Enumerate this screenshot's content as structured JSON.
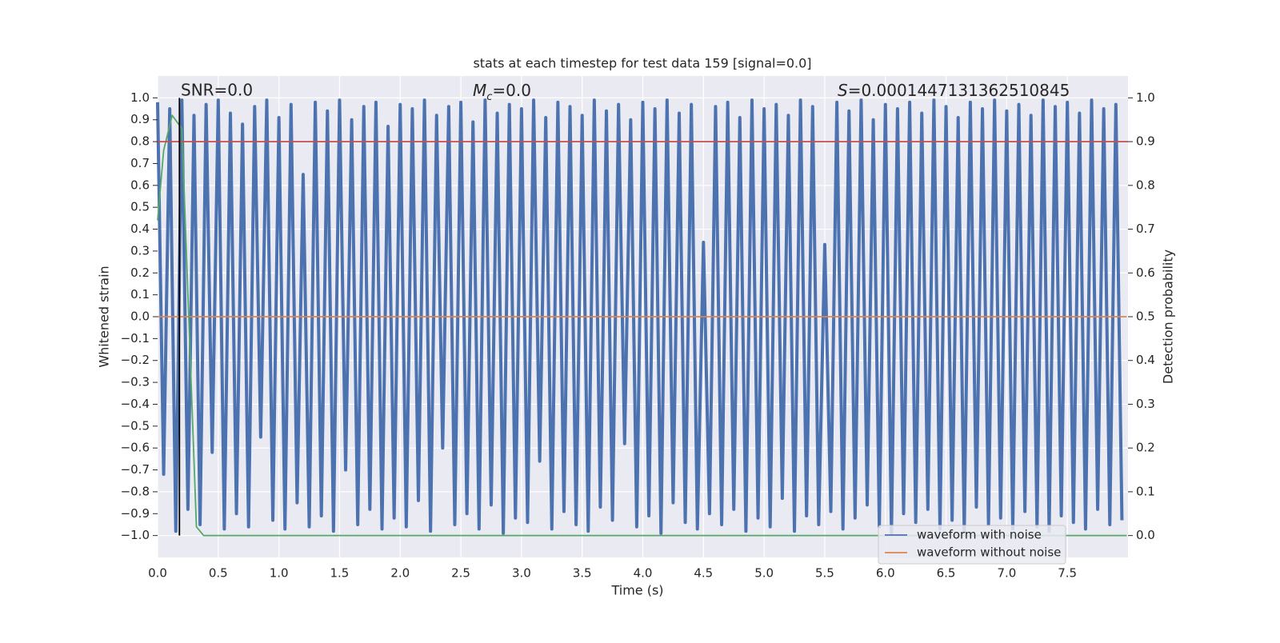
{
  "chart_data": {
    "type": "line",
    "title": "stats at each timestep for test data 159 [signal=0.0]",
    "xlabel": "Time (s)",
    "ylabel": "Whitened strain",
    "y2label": "Detection probability",
    "annotations": [
      {
        "text": "SNR=0.0",
        "x": 0.2
      },
      {
        "symbol": "M",
        "subscript": "c",
        "text": "=0.0",
        "x": 2.6
      },
      {
        "symbol": "S",
        "text": "=0.0001447131362510845",
        "x": 5.6
      }
    ],
    "xlim": [
      0,
      8
    ],
    "ylim": [
      -1.1,
      1.1
    ],
    "y2lim": [
      -0.05,
      1.05
    ],
    "xticks": [
      {
        "value": 0,
        "label": "0.0"
      },
      0.5,
      {
        "value": 1,
        "label": "1.0"
      },
      1.5,
      {
        "value": 2,
        "label": "2.0"
      },
      2.5,
      {
        "value": 3,
        "label": "3.0"
      },
      3.5,
      {
        "value": 4,
        "label": "4.0"
      },
      4.5,
      {
        "value": 5,
        "label": "5.0"
      },
      5.5,
      {
        "value": 6,
        "label": "6.0"
      },
      6.5,
      {
        "value": 7,
        "label": "7.0"
      },
      7.5
    ],
    "yticks": [
      {
        "value": 1,
        "label": "1.0"
      },
      0.9,
      0.8,
      0.7,
      0.6,
      0.5,
      0.4,
      0.3,
      0.2,
      0.1,
      {
        "value": 0,
        "label": "0.0"
      },
      {
        "value": -0.1,
        "label": "−0.1"
      },
      {
        "value": -0.2,
        "label": "−0.2"
      },
      {
        "value": -0.3,
        "label": "−0.3"
      },
      {
        "value": -0.4,
        "label": "−0.4"
      },
      {
        "value": -0.5,
        "label": "−0.5"
      },
      {
        "value": -0.6,
        "label": "−0.6"
      },
      {
        "value": -0.7,
        "label": "−0.7"
      },
      {
        "value": -0.8,
        "label": "−0.8"
      },
      {
        "value": -0.9,
        "label": "−0.9"
      },
      {
        "value": -1,
        "label": "−1.0"
      }
    ],
    "y2ticks": [
      {
        "value": 0,
        "label": "0.0"
      },
      0.1,
      0.2,
      0.3,
      0.4,
      0.5,
      0.6,
      0.7,
      0.8,
      0.9,
      {
        "value": 1,
        "label": "1.0"
      }
    ],
    "grid": true,
    "legend": "lower right",
    "threshold_y2": 0.9,
    "threshold_color": "#c44e52",
    "marker_x": 0.18,
    "marker_color": "#000000",
    "series": [
      {
        "name": "waveform with noise",
        "color": "#4c72b0",
        "x": [
          0,
          0.05,
          0.1,
          0.15,
          0.2,
          0.25,
          0.3,
          0.35,
          0.4,
          0.45,
          0.5,
          0.55,
          0.6,
          0.65,
          0.7,
          0.75,
          0.8,
          0.85,
          0.9,
          0.95,
          1,
          1.05,
          1.1,
          1.15,
          1.2,
          1.25,
          1.3,
          1.35,
          1.4,
          1.45,
          1.5,
          1.55,
          1.6,
          1.65,
          1.7,
          1.75,
          1.8,
          1.85,
          1.9,
          1.95,
          2,
          2.05,
          2.1,
          2.15,
          2.2,
          2.25,
          2.3,
          2.35,
          2.4,
          2.45,
          2.5,
          2.55,
          2.6,
          2.65,
          2.7,
          2.75,
          2.8,
          2.85,
          2.9,
          2.95,
          3,
          3.05,
          3.1,
          3.15,
          3.2,
          3.25,
          3.3,
          3.35,
          3.4,
          3.45,
          3.5,
          3.55,
          3.6,
          3.65,
          3.7,
          3.75,
          3.8,
          3.85,
          3.9,
          3.95,
          4,
          4.05,
          4.1,
          4.15,
          4.2,
          4.25,
          4.3,
          4.35,
          4.4,
          4.45,
          4.5,
          4.55,
          4.6,
          4.65,
          4.7,
          4.75,
          4.8,
          4.85,
          4.9,
          4.95,
          5,
          5.05,
          5.1,
          5.15,
          5.2,
          5.25,
          5.3,
          5.35,
          5.4,
          5.45,
          5.5,
          5.55,
          5.6,
          5.65,
          5.7,
          5.75,
          5.8,
          5.85,
          5.9,
          5.95,
          6,
          6.05,
          6.1,
          6.15,
          6.2,
          6.25,
          6.3,
          6.35,
          6.4,
          6.45,
          6.5,
          6.55,
          6.6,
          6.65,
          6.7,
          6.75,
          6.8,
          6.85,
          6.9,
          6.95,
          7,
          7.05,
          7.1,
          7.15,
          7.2,
          7.25,
          7.3,
          7.35,
          7.4,
          7.45,
          7.5,
          7.55,
          7.6,
          7.65,
          7.7,
          7.75,
          7.8,
          7.85,
          7.9,
          7.95
        ],
        "values": [
          0.98,
          -0.72,
          0.95,
          -0.98,
          0.99,
          -0.88,
          0.92,
          -0.95,
          0.97,
          -0.62,
          0.99,
          -0.97,
          0.93,
          -0.9,
          0.88,
          -0.96,
          0.96,
          -0.55,
          0.99,
          -0.93,
          0.91,
          -0.97,
          0.97,
          -0.85,
          0.65,
          -0.96,
          0.98,
          -0.91,
          0.94,
          -0.98,
          0.99,
          -0.7,
          0.9,
          -0.95,
          0.96,
          -0.88,
          0.98,
          -0.97,
          0.87,
          -0.92,
          0.97,
          -0.96,
          0.95,
          -0.84,
          0.99,
          -0.98,
          0.92,
          -0.6,
          0.96,
          -0.95,
          0.98,
          -0.9,
          0.89,
          -0.97,
          0.99,
          -0.86,
          0.93,
          -0.99,
          0.97,
          -0.92,
          0.95,
          -0.94,
          0.99,
          -0.66,
          0.91,
          -0.97,
          0.98,
          -0.89,
          0.96,
          -0.95,
          0.92,
          -0.98,
          0.99,
          -0.87,
          0.94,
          -0.93,
          0.97,
          -0.58,
          0.9,
          -0.96,
          0.98,
          -0.91,
          0.95,
          -0.99,
          0.99,
          -0.85,
          0.93,
          -0.94,
          0.97,
          -0.97,
          0.34,
          -0.9,
          0.96,
          -0.95,
          0.98,
          -0.88,
          0.91,
          -0.98,
          0.99,
          -0.92,
          0.95,
          -0.96,
          0.97,
          -0.83,
          0.92,
          -0.98,
          0.99,
          -0.91,
          0.96,
          -0.95,
          0.33,
          -0.89,
          0.98,
          -0.97,
          0.94,
          -0.92,
          0.99,
          -0.86,
          0.9,
          -0.96,
          0.97,
          -0.99,
          0.95,
          -0.9,
          0.98,
          -0.94,
          0.93,
          -0.88,
          0.99,
          -0.97,
          0.96,
          -0.93,
          0.91,
          -0.98,
          0.98,
          -0.87,
          0.95,
          -0.95,
          0.99,
          -0.92,
          0.94,
          -0.97,
          0.97,
          -0.89,
          0.92,
          -0.96,
          0.99,
          -0.98,
          0.96,
          -0.91,
          0.98,
          -0.94,
          0.93,
          -0.97,
          0.99,
          -0.88,
          0.95,
          -0.95,
          0.97,
          -0.93
        ]
      },
      {
        "name": "waveform without noise",
        "color": "#dd8452",
        "x": [
          0,
          7.99
        ],
        "values": [
          0,
          0
        ]
      },
      {
        "color": "#55a868",
        "axis": "y2",
        "x": [
          0,
          0.05,
          0.12,
          0.2,
          0.32,
          0.38,
          7.99
        ],
        "values": [
          0.72,
          0.88,
          0.96,
          0.93,
          0.02,
          0,
          0
        ]
      }
    ]
  }
}
